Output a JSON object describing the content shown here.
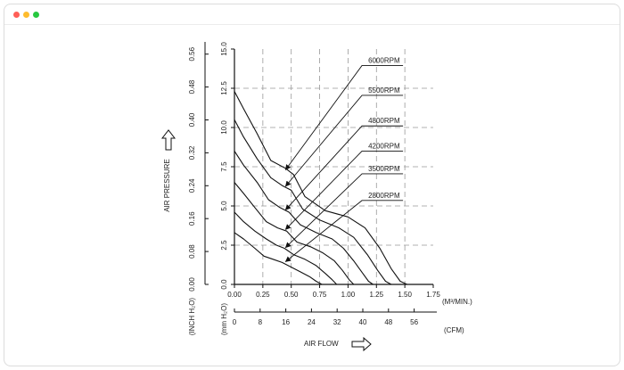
{
  "window": {
    "controls": {
      "close_color": "#ff5f57",
      "minimize_color": "#febc2e",
      "maximize_color": "#28c840"
    }
  },
  "chart_data": {
    "type": "line",
    "title": "",
    "x_axis": {
      "unit": "(M³/MIN.)",
      "range": [
        0,
        1.75
      ],
      "ticks": [
        "0.00",
        "0.25",
        "0.50",
        "0.75",
        "1.00",
        "1.25",
        "1.50",
        "1.75"
      ],
      "secondary_unit": "(CFM)",
      "secondary_ticks": [
        "0",
        "8",
        "16",
        "24",
        "32",
        "40",
        "48",
        "56"
      ],
      "label": "AIR FLOW"
    },
    "y_axis": {
      "unit": "(mm H₂O)",
      "range": [
        0,
        15
      ],
      "ticks": [
        "0.0",
        "2.5",
        "5.0",
        "7.5",
        "10.0",
        "12.5",
        "15.0"
      ],
      "secondary_unit": "(INCH H₂O)",
      "secondary_ticks": [
        "0.00",
        "0.08",
        "0.16",
        "0.24",
        "0.32",
        "0.40",
        "0.48",
        "0.56"
      ],
      "label": "AIR PRESSURE"
    },
    "grid": "dashed",
    "series": [
      {
        "name": "6000RPM",
        "x": [
          0,
          0.08,
          0.2,
          0.32,
          0.45,
          0.52,
          0.62,
          0.8,
          1.0,
          1.15,
          1.28,
          1.38,
          1.46,
          1.52
        ],
        "y": [
          12.3,
          11.2,
          9.6,
          7.9,
          7.4,
          7.0,
          5.6,
          4.7,
          4.3,
          3.6,
          2.3,
          1.0,
          0.2,
          0
        ]
      },
      {
        "name": "5500RPM",
        "x": [
          0,
          0.08,
          0.2,
          0.32,
          0.42,
          0.5,
          0.6,
          0.75,
          0.92,
          1.05,
          1.17,
          1.26,
          1.33,
          1.38
        ],
        "y": [
          10.5,
          9.4,
          8.0,
          6.8,
          6.3,
          6.0,
          4.8,
          4.1,
          3.6,
          3.0,
          1.9,
          0.9,
          0.2,
          0
        ]
      },
      {
        "name": "4800RPM",
        "x": [
          0,
          0.08,
          0.2,
          0.3,
          0.4,
          0.48,
          0.58,
          0.72,
          0.86,
          0.96,
          1.05,
          1.13,
          1.18,
          1.22
        ],
        "y": [
          8.5,
          7.6,
          6.5,
          5.4,
          4.9,
          4.6,
          3.8,
          3.3,
          2.9,
          2.3,
          1.5,
          0.7,
          0.2,
          0
        ]
      },
      {
        "name": "4200RPM",
        "x": [
          0,
          0.08,
          0.18,
          0.28,
          0.38,
          0.46,
          0.55,
          0.67,
          0.78,
          0.88,
          0.95,
          1.01,
          1.05
        ],
        "y": [
          6.5,
          5.8,
          4.9,
          4.0,
          3.6,
          3.4,
          2.7,
          2.4,
          2.0,
          1.5,
          0.9,
          0.3,
          0
        ]
      },
      {
        "name": "3500RPM",
        "x": [
          0,
          0.08,
          0.18,
          0.28,
          0.37,
          0.44,
          0.52,
          0.62,
          0.72,
          0.8,
          0.86,
          0.9
        ],
        "y": [
          4.6,
          4.0,
          3.4,
          2.9,
          2.5,
          2.3,
          1.9,
          1.6,
          1.2,
          0.7,
          0.3,
          0
        ]
      },
      {
        "name": "2800RPM",
        "x": [
          0,
          0.08,
          0.18,
          0.26,
          0.34,
          0.42,
          0.5,
          0.58,
          0.66,
          0.72,
          0.77
        ],
        "y": [
          3.3,
          2.9,
          2.3,
          1.8,
          1.6,
          1.4,
          1.1,
          0.8,
          0.5,
          0.2,
          0
        ]
      }
    ],
    "annotations": [
      {
        "series": "6000RPM",
        "label_pos": [
          1.17,
          13.95
        ],
        "arrow_to": [
          0.45,
          7.3
        ]
      },
      {
        "series": "5500RPM",
        "label_pos": [
          1.17,
          12.05
        ],
        "arrow_to": [
          0.45,
          6.25
        ]
      },
      {
        "series": "4800RPM",
        "label_pos": [
          1.17,
          10.1
        ],
        "arrow_to": [
          0.45,
          4.75
        ]
      },
      {
        "series": "4200RPM",
        "label_pos": [
          1.17,
          8.5
        ],
        "arrow_to": [
          0.45,
          3.5
        ]
      },
      {
        "series": "3500RPM",
        "label_pos": [
          1.17,
          7.05
        ],
        "arrow_to": [
          0.45,
          2.35
        ]
      },
      {
        "series": "2800RPM",
        "label_pos": [
          1.17,
          5.35
        ],
        "arrow_to": [
          0.45,
          1.45
        ]
      }
    ]
  }
}
